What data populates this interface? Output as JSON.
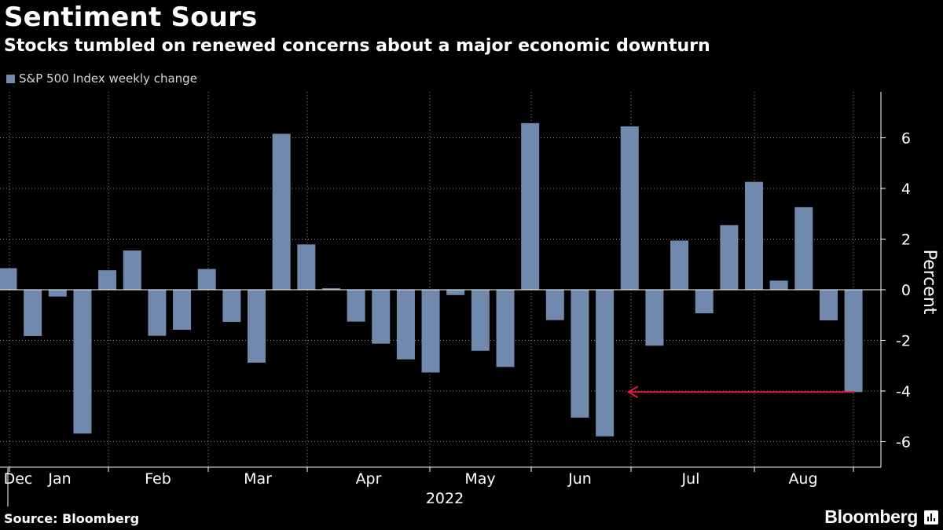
{
  "header": {
    "title": "Sentiment Sours",
    "subtitle": "Stocks tumbled on renewed concerns about a major economic downturn"
  },
  "legend": {
    "label": "S&P 500 Index weekly change"
  },
  "footer": {
    "source": "Source: Bloomberg",
    "brand": "Bloomberg"
  },
  "colors": {
    "bar": "#7289ae",
    "arrow": "#e0193c",
    "grid": "#8a8a8a",
    "text": "#ffffff",
    "background": "#000000"
  },
  "chart_data": {
    "type": "bar",
    "title": "Sentiment Sours",
    "subtitle": "Stocks tumbled on renewed concerns about a major economic downturn",
    "series_name": "S&P 500 Index weekly change",
    "ylabel": "Percent",
    "ylim": [
      -7,
      7.7
    ],
    "yticks": [
      6,
      4,
      2,
      0,
      -2,
      -4,
      -6
    ],
    "year_label": "2022",
    "month_labels": [
      "Dec",
      "Jan",
      "Feb",
      "Mar",
      "Apr",
      "May",
      "Jun",
      "Jul",
      "Aug"
    ],
    "weeks": [
      {
        "week": 1,
        "value": 0.85
      },
      {
        "week": 2,
        "value": -1.83
      },
      {
        "week": 3,
        "value": -0.27
      },
      {
        "week": 4,
        "value": -5.68
      },
      {
        "week": 5,
        "value": 0.77
      },
      {
        "week": 6,
        "value": 1.55
      },
      {
        "week": 7,
        "value": -1.82
      },
      {
        "week": 8,
        "value": -1.58
      },
      {
        "week": 9,
        "value": 0.82
      },
      {
        "week": 10,
        "value": -1.27
      },
      {
        "week": 11,
        "value": -2.88
      },
      {
        "week": 12,
        "value": 6.16
      },
      {
        "week": 13,
        "value": 1.79
      },
      {
        "week": 14,
        "value": 0.06
      },
      {
        "week": 15,
        "value": -1.26
      },
      {
        "week": 16,
        "value": -2.13
      },
      {
        "week": 17,
        "value": -2.75
      },
      {
        "week": 18,
        "value": -3.27
      },
      {
        "week": 19,
        "value": -0.21
      },
      {
        "week": 20,
        "value": -2.41
      },
      {
        "week": 21,
        "value": -3.05
      },
      {
        "week": 22,
        "value": 6.58
      },
      {
        "week": 23,
        "value": -1.2
      },
      {
        "week": 24,
        "value": -5.05
      },
      {
        "week": 25,
        "value": -5.79
      },
      {
        "week": 26,
        "value": 6.45
      },
      {
        "week": 27,
        "value": -2.21
      },
      {
        "week": 28,
        "value": 1.94
      },
      {
        "week": 29,
        "value": -0.93
      },
      {
        "week": 30,
        "value": 2.55
      },
      {
        "week": 31,
        "value": 4.26
      },
      {
        "week": 32,
        "value": 0.36
      },
      {
        "week": 33,
        "value": 3.26
      },
      {
        "week": 34,
        "value": -1.21
      },
      {
        "week": 35,
        "value": -4.04
      }
    ],
    "annotation": {
      "type": "arrow",
      "from_week": 35,
      "to_week": 25,
      "value": -4.04
    }
  }
}
